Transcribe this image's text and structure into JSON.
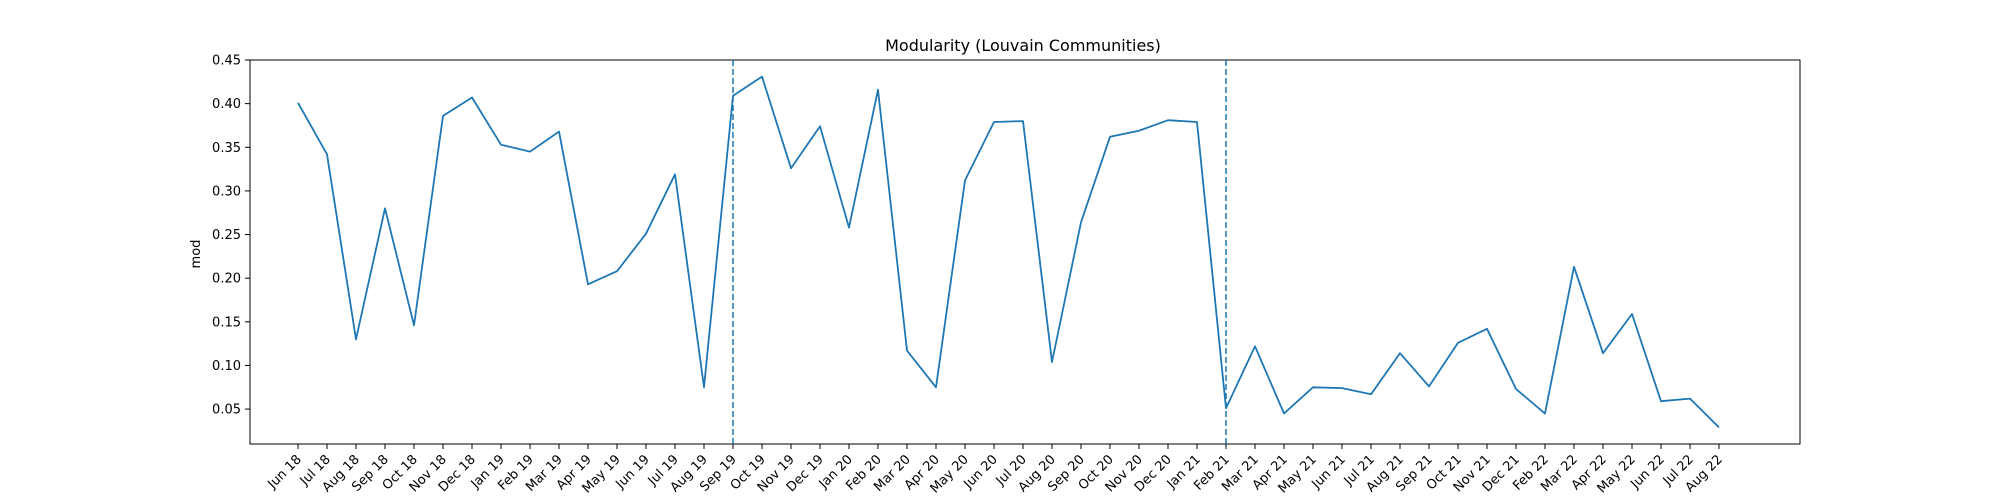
{
  "chart_data": {
    "type": "line",
    "title": "Modularity (Louvain Communities)",
    "xlabel": "",
    "ylabel": "mod",
    "ylim": [
      0.01,
      0.45
    ],
    "yticks": [
      "0.05",
      "0.10",
      "0.15",
      "0.20",
      "0.25",
      "0.30",
      "0.35",
      "0.40",
      "0.45"
    ],
    "grid": false,
    "line_color": "#1f77b4",
    "categories": [
      "Jun 18",
      "Jul 18",
      "Aug 18",
      "Sep 18",
      "Oct 18",
      "Nov 18",
      "Dec 18",
      "Jan 19",
      "Feb 19",
      "Mar 19",
      "Apr 19",
      "May 19",
      "Jun 19",
      "Jul 19",
      "Aug 19",
      "Sep 19",
      "Oct 19",
      "Nov 19",
      "Dec 19",
      "Jan 20",
      "Feb 20",
      "Mar 20",
      "Apr 20",
      "May 20",
      "Jun 20",
      "Jul 20",
      "Aug 20",
      "Sep 20",
      "Oct 20",
      "Nov 20",
      "Dec 20",
      "Jan 21",
      "Feb 21",
      "Mar 21",
      "Apr 21",
      "May 21",
      "Jun 21",
      "Jul 21",
      "Aug 21",
      "Sep 21",
      "Oct 21",
      "Nov 21",
      "Dec 21",
      "Feb 22",
      "Mar 22",
      "Apr 22",
      "May 22",
      "Jun 22",
      "Jul 22",
      "Aug 22"
    ],
    "series": [
      {
        "values": [
          0.401,
          0.342,
          0.13,
          0.28,
          0.146,
          0.386,
          0.407,
          0.353,
          0.345,
          0.368,
          0.193,
          0.208,
          0.251,
          0.319,
          0.075,
          0.409,
          0.431,
          0.326,
          0.374,
          0.258,
          0.416,
          0.117,
          0.075,
          0.312,
          0.379,
          0.38,
          0.104,
          0.264,
          0.362,
          0.369,
          0.381,
          0.379,
          0.051,
          0.122,
          0.045,
          0.075,
          0.074,
          0.067,
          0.114,
          0.076,
          0.126,
          0.142,
          0.073,
          0.045,
          0.213,
          0.114,
          0.159,
          0.059,
          0.062,
          0.029
        ]
      }
    ],
    "vlines": [
      "Sep 19",
      "Feb 21"
    ]
  }
}
